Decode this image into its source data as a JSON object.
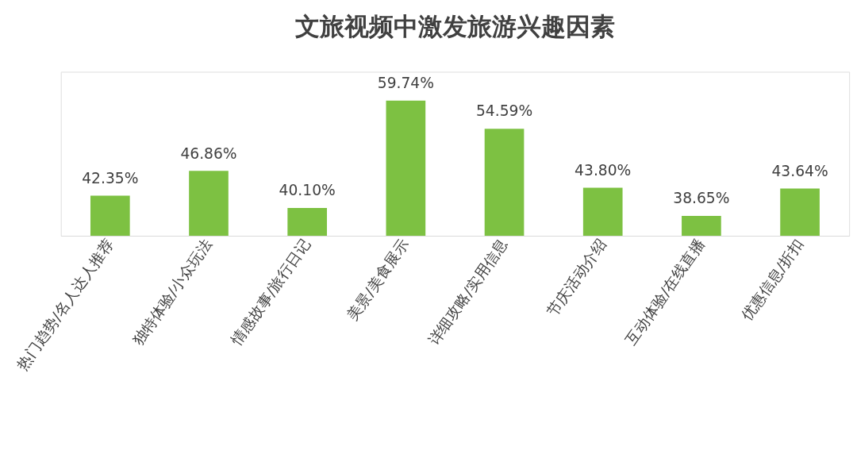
{
  "chart_data": {
    "type": "bar",
    "title": "文旅视频中激发旅游兴趣因素",
    "categories": [
      "热门趋势/名人达人推荐",
      "独特体验/小众玩法",
      "情感故事/旅行日记",
      "美景/美食展示",
      "详细攻略/实用信息",
      "节庆活动介绍",
      "互动体验/在线直播",
      "优惠信息/折扣"
    ],
    "values": [
      42.35,
      46.86,
      40.1,
      59.74,
      54.59,
      43.8,
      38.65,
      43.64
    ],
    "value_labels": [
      "42.35%",
      "46.86%",
      "40.10%",
      "59.74%",
      "54.59%",
      "43.80%",
      "38.65%",
      "43.64%"
    ],
    "color": "#7dc142",
    "ylim": [
      35,
      65
    ],
    "tick_labels": "x",
    "grid": false
  }
}
